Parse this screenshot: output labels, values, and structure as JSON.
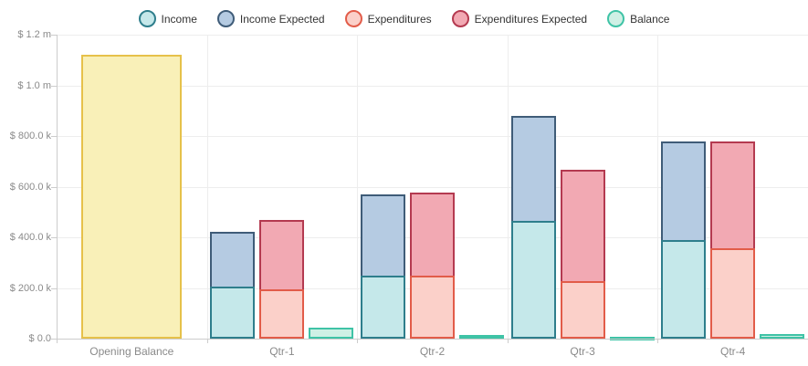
{
  "legend": {
    "labels": [
      "Income",
      "Income Expected",
      "Expenditures",
      "Expenditures Expected",
      "Balance"
    ]
  },
  "y_axis": {
    "tick_labels": [
      "$ 1.2 m",
      "$ 1.0 m",
      "$ 800.0 k",
      "$ 600.0 k",
      "$ 400.0 k",
      "$ 200.0 k",
      "$ 0.0"
    ],
    "tick_values": [
      1200000,
      1000000,
      800000,
      600000,
      400000,
      200000,
      0
    ]
  },
  "x_axis": {
    "labels": [
      "Opening Balance",
      "Qtr-1",
      "Qtr-2",
      "Qtr-3",
      "Qtr-4"
    ]
  },
  "chart_data": {
    "type": "bar",
    "title": "",
    "xlabel": "",
    "ylabel": "",
    "categories": [
      "Opening Balance",
      "Qtr-1",
      "Qtr-2",
      "Qtr-3",
      "Qtr-4"
    ],
    "ylim": [
      0,
      1200000
    ],
    "grid": true,
    "legend_position": "top",
    "y_tick_labels": [
      "$ 1.2 m",
      "$ 1.0 m",
      "$ 800.0 k",
      "$ 600.0 k",
      "$ 400.0 k",
      "$ 200.0 k",
      "$ 0.0"
    ],
    "series": [
      {
        "name": "Opening Balance",
        "stack": "opening",
        "in_legend": false,
        "values": [
          1120000,
          null,
          null,
          null,
          null
        ],
        "fill": "#f9f0b8",
        "border": "#e6c14a"
      },
      {
        "name": "Income",
        "stack": "income",
        "in_legend": true,
        "values": [
          null,
          205000,
          250000,
          465000,
          390000
        ],
        "fill": "#c5e8ea",
        "border": "#2e7e8c"
      },
      {
        "name": "Income Expected",
        "stack": "income",
        "in_legend": true,
        "values": [
          null,
          215000,
          320000,
          415000,
          390000
        ],
        "fill": "#b5cbe2",
        "border": "#3f5c78"
      },
      {
        "name": "Expenditures",
        "stack": "expenditures",
        "in_legend": true,
        "values": [
          null,
          195000,
          250000,
          228000,
          357000
        ],
        "fill": "#fbd0c9",
        "border": "#e25c49"
      },
      {
        "name": "Expenditures Expected",
        "stack": "expenditures",
        "in_legend": true,
        "values": [
          null,
          275000,
          325000,
          437000,
          423000
        ],
        "fill": "#f2a9b3",
        "border": "#b43a50"
      },
      {
        "name": "Balance",
        "stack": "balance",
        "in_legend": true,
        "values": [
          null,
          45000,
          13000,
          7000,
          18000
        ],
        "fill": "#cff0e5",
        "border": "#3fc3a6"
      }
    ]
  }
}
